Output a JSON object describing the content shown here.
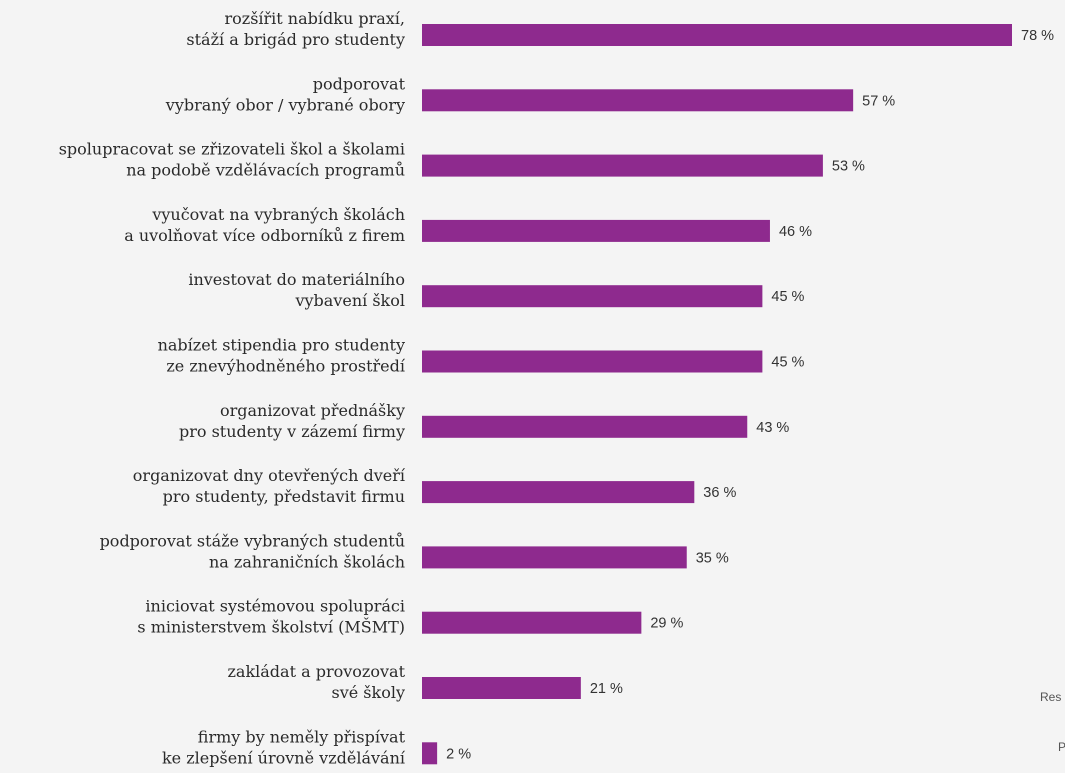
{
  "chart_data": {
    "type": "bar",
    "orientation": "horizontal",
    "categories": [
      [
        "rozšířit nabídku praxí,",
        "stáží a brigád pro studenty"
      ],
      [
        "podporovat",
        "vybraný obor / vybrané obory"
      ],
      [
        "spolupracovat se zřizovateli škol a školami",
        "na podobě vzdělávacích programů"
      ],
      [
        "vyučovat na vybraných školách",
        "a uvolňovat více odborníků z firem"
      ],
      [
        "investovat do materiálního",
        "vybavení škol"
      ],
      [
        "nabízet stipendia pro studenty",
        "ze znevýhodněného prostředí"
      ],
      [
        "organizovat přednášky",
        "pro studenty v zázemí firmy"
      ],
      [
        "organizovat dny otevřených dveří",
        "pro studenty, představit firmu"
      ],
      [
        "podporovat stáže vybraných studentů",
        "na zahraničních školách"
      ],
      [
        "iniciovat systémovou spolupráci",
        "s ministerstvem školství (MŠMT)"
      ],
      [
        "zakládat a provozovat",
        "své školy"
      ],
      [
        "firmy by neměly přispívat",
        "ke zlepšení úrovně vzdělávání"
      ]
    ],
    "values": [
      78,
      57,
      53,
      46,
      45,
      45,
      43,
      36,
      35,
      29,
      21,
      2
    ],
    "value_suffix": " %",
    "bar_color": "#8e2a8e",
    "ylim": [
      0,
      78
    ],
    "grid": false,
    "legend": "none"
  },
  "edge_text": [
    "Res",
    "P"
  ]
}
